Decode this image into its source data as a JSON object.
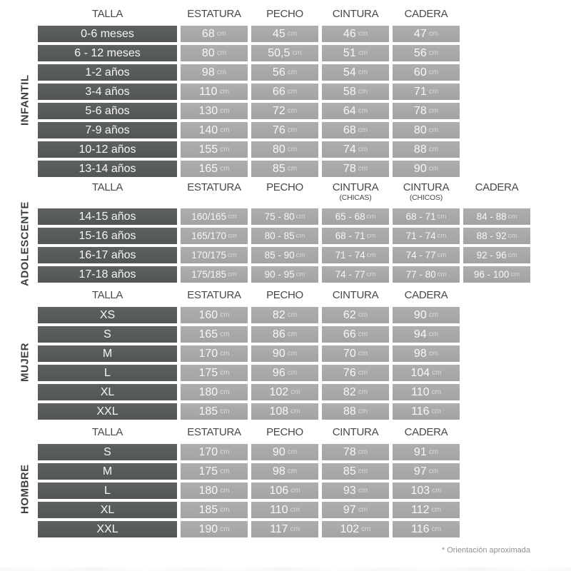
{
  "unit_label": "cm",
  "colors": {
    "page_bg": "#ffffff",
    "dark_cell_top": "#5d615f",
    "dark_cell_bottom": "#525755",
    "light_cell_top": "#aeaeae",
    "light_cell_bottom": "#a3a3a3",
    "header_text": "#46494b",
    "section_label_text": "#3c4042",
    "cell_text": "#f7f7f7",
    "unit_text": "#d9d9d9",
    "note_text": "#909090"
  },
  "footer": {
    "note": "* Orientación aproximada"
  },
  "chart_data": [
    {
      "type": "table",
      "section_label": "INFANTIL",
      "columns": [
        {
          "label": "TALLA",
          "sublabel": ""
        },
        {
          "label": "ESTATURA",
          "sublabel": ""
        },
        {
          "label": "PECHO",
          "sublabel": ""
        },
        {
          "label": "CINTURA",
          "sublabel": ""
        },
        {
          "label": "CADERA",
          "sublabel": ""
        }
      ],
      "rows": [
        {
          "size": "0-6 meses",
          "values": [
            "68",
            "45",
            "46",
            "47"
          ]
        },
        {
          "size": "6 - 12 meses",
          "values": [
            "80",
            "50,5",
            "51",
            "56"
          ]
        },
        {
          "size": "1-2 años",
          "values": [
            "98",
            "56",
            "54",
            "60"
          ]
        },
        {
          "size": "3-4 años",
          "values": [
            "110",
            "66",
            "58",
            "71"
          ]
        },
        {
          "size": "5-6 años",
          "values": [
            "130",
            "72",
            "64",
            "78"
          ]
        },
        {
          "size": "7-9 años",
          "values": [
            "140",
            "76",
            "68",
            "80"
          ]
        },
        {
          "size": "10-12 años",
          "values": [
            "155",
            "80",
            "74",
            "88"
          ]
        },
        {
          "size": "13-14 años",
          "values": [
            "165",
            "85",
            "78",
            "90"
          ]
        }
      ]
    },
    {
      "type": "table",
      "section_label": "ADOLESCENTE",
      "columns": [
        {
          "label": "TALLA",
          "sublabel": ""
        },
        {
          "label": "ESTATURA",
          "sublabel": ""
        },
        {
          "label": "PECHO",
          "sublabel": ""
        },
        {
          "label": "CINTURA",
          "sublabel": "(CHICAS)"
        },
        {
          "label": "CINTURA",
          "sublabel": "(CHICOS)"
        },
        {
          "label": "CADERA",
          "sublabel": ""
        }
      ],
      "rows": [
        {
          "size": "14-15 años",
          "values": [
            "160/165",
            "75 - 80",
            "65 - 68",
            "68 - 71",
            "84 - 88"
          ]
        },
        {
          "size": "15-16 años",
          "values": [
            "165/170",
            "80 - 85",
            "68 - 71",
            "71 - 74",
            "88 - 92"
          ]
        },
        {
          "size": "16-17 años",
          "values": [
            "170/175",
            "85 - 90",
            "71 - 74",
            "74 - 77",
            "92 - 96"
          ]
        },
        {
          "size": "17-18 años",
          "values": [
            "175/185",
            "90 - 95",
            "74 - 77",
            "77 - 80",
            "96 - 100"
          ]
        }
      ]
    },
    {
      "type": "table",
      "section_label": "MUJER",
      "columns": [
        {
          "label": "TALLA",
          "sublabel": ""
        },
        {
          "label": "ESTATURA",
          "sublabel": ""
        },
        {
          "label": "PECHO",
          "sublabel": ""
        },
        {
          "label": "CINTURA",
          "sublabel": ""
        },
        {
          "label": "CADERA",
          "sublabel": ""
        }
      ],
      "rows": [
        {
          "size": "XS",
          "values": [
            "160",
            "82",
            "62",
            "90"
          ]
        },
        {
          "size": "S",
          "values": [
            "165",
            "86",
            "66",
            "94"
          ]
        },
        {
          "size": "M",
          "values": [
            "170",
            "90",
            "70",
            "98"
          ]
        },
        {
          "size": "L",
          "values": [
            "175",
            "96",
            "76",
            "104"
          ]
        },
        {
          "size": "XL",
          "values": [
            "180",
            "102",
            "82",
            "110"
          ]
        },
        {
          "size": "XXL",
          "values": [
            "185",
            "108",
            "88",
            "116"
          ]
        }
      ]
    },
    {
      "type": "table",
      "section_label": "HOMBRE",
      "columns": [
        {
          "label": "TALLA",
          "sublabel": ""
        },
        {
          "label": "ESTATURA",
          "sublabel": ""
        },
        {
          "label": "PECHO",
          "sublabel": ""
        },
        {
          "label": "CINTURA",
          "sublabel": ""
        },
        {
          "label": "CADERA",
          "sublabel": ""
        }
      ],
      "rows": [
        {
          "size": "S",
          "values": [
            "170",
            "90",
            "78",
            "91"
          ]
        },
        {
          "size": "M",
          "values": [
            "175",
            "98",
            "85",
            "97"
          ]
        },
        {
          "size": "L",
          "values": [
            "180",
            "106",
            "93",
            "103"
          ]
        },
        {
          "size": "XL",
          "values": [
            "185",
            "110",
            "97",
            "112"
          ]
        },
        {
          "size": "XXL",
          "values": [
            "190",
            "117",
            "102",
            "116"
          ]
        }
      ]
    }
  ]
}
